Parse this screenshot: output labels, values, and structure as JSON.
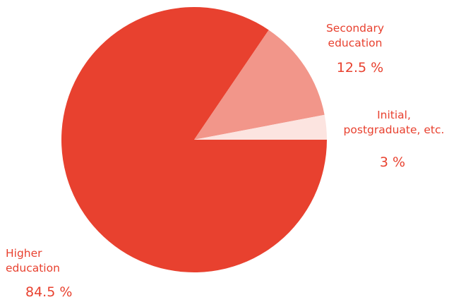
{
  "chart_data": {
    "type": "pie",
    "slices": [
      {
        "label_line1": "Higher",
        "label_line2": "education",
        "value": 84.5,
        "value_label": "84.5 %",
        "color": "#e8412f"
      },
      {
        "label_line1": "Secondary",
        "label_line2": "education",
        "value": 12.5,
        "value_label": "12.5 %",
        "color": "#f2968a"
      },
      {
        "label_line1": "Initial,",
        "label_line2": "postgraduate, etc.",
        "value": 3,
        "value_label": "3 %",
        "color": "#fce4e0"
      }
    ],
    "start_angle_deg": 0,
    "direction": "clockwise",
    "label_color": "#e8412f"
  }
}
